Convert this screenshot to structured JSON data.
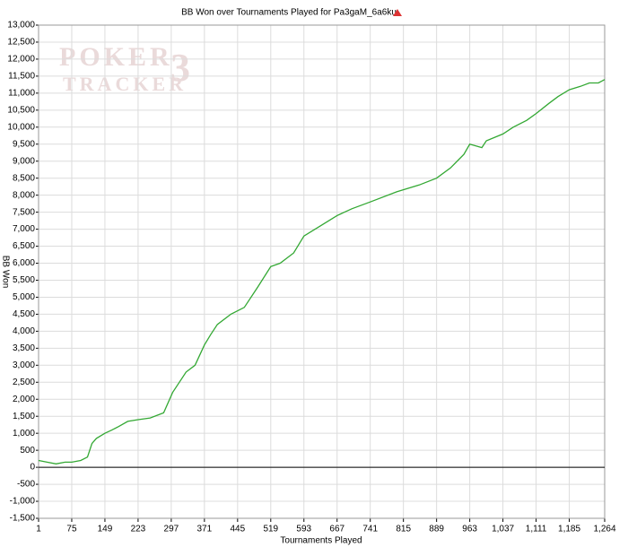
{
  "chart_data": {
    "type": "line",
    "title": "BB Won over Tournaments Played for Pa3gaM_6a6ku",
    "watermark": [
      "POKER",
      "TRACKER",
      "3"
    ],
    "x_label": "Tournaments Played",
    "y_label": "BB Won",
    "color": "#33a833",
    "grid": true,
    "x": [
      1,
      20,
      40,
      60,
      75,
      95,
      110,
      120,
      130,
      149,
      165,
      180,
      200,
      223,
      250,
      280,
      300,
      315,
      330,
      350,
      371,
      385,
      400,
      430,
      460,
      490,
      519,
      540,
      570,
      593,
      630,
      667,
      700,
      741,
      800,
      850,
      889,
      920,
      950,
      963,
      990,
      1000,
      1037,
      1060,
      1090,
      1111,
      1140,
      1160,
      1185,
      1210,
      1230,
      1250,
      1264
    ],
    "values": [
      200,
      150,
      100,
      150,
      150,
      200,
      300,
      700,
      850,
      1000,
      1100,
      1200,
      1350,
      1400,
      1450,
      1600,
      2200,
      2500,
      2800,
      3000,
      3600,
      3900,
      4200,
      4500,
      4700,
      5300,
      5900,
      6000,
      6300,
      6800,
      7100,
      7400,
      7600,
      7800,
      8100,
      8300,
      8500,
      8800,
      9200,
      9500,
      9400,
      9600,
      9800,
      10000,
      10200,
      10400,
      10700,
      10900,
      11100,
      11200,
      11300,
      11300,
      11400
    ],
    "xlim": [
      1,
      1264
    ],
    "xticks": [
      1,
      75,
      149,
      223,
      297,
      371,
      445,
      519,
      593,
      667,
      741,
      815,
      889,
      963,
      {
        "value": 1037,
        "label": "1,037"
      },
      {
        "value": 1111,
        "label": "1,111"
      },
      {
        "value": 1185,
        "label": "1,185"
      },
      {
        "value": 1264,
        "label": "1,264"
      }
    ],
    "ylim": [
      -1500,
      13000
    ],
    "yticks": [
      {
        "value": -1500,
        "label": "-1,500"
      },
      {
        "value": -1000,
        "label": "-1,000"
      },
      -500,
      0,
      500,
      {
        "value": 1000,
        "label": "1,000"
      },
      {
        "value": 1500,
        "label": "1,500"
      },
      {
        "value": 2000,
        "label": "2,000"
      },
      {
        "value": 2500,
        "label": "2,500"
      },
      {
        "value": 3000,
        "label": "3,000"
      },
      {
        "value": 3500,
        "label": "3,500"
      },
      {
        "value": 4000,
        "label": "4,000"
      },
      {
        "value": 4500,
        "label": "4,500"
      },
      {
        "value": 5000,
        "label": "5,000"
      },
      {
        "value": 5500,
        "label": "5,500"
      },
      {
        "value": 6000,
        "label": "6,000"
      },
      {
        "value": 6500,
        "label": "6,500"
      },
      {
        "value": 7000,
        "label": "7,000"
      },
      {
        "value": 7500,
        "label": "7,500"
      },
      {
        "value": 8000,
        "label": "8,000"
      },
      {
        "value": 8500,
        "label": "8,500"
      },
      {
        "value": 9000,
        "label": "9,000"
      },
      {
        "value": 9500,
        "label": "9,500"
      },
      {
        "value": 10000,
        "label": "10,000"
      },
      {
        "value": 10500,
        "label": "10,500"
      },
      {
        "value": 11000,
        "label": "11,000"
      },
      {
        "value": 11500,
        "label": "11,500"
      },
      {
        "value": 12000,
        "label": "12,000"
      },
      {
        "value": 12500,
        "label": "12,500"
      },
      {
        "value": 13000,
        "label": "13,000"
      }
    ]
  }
}
